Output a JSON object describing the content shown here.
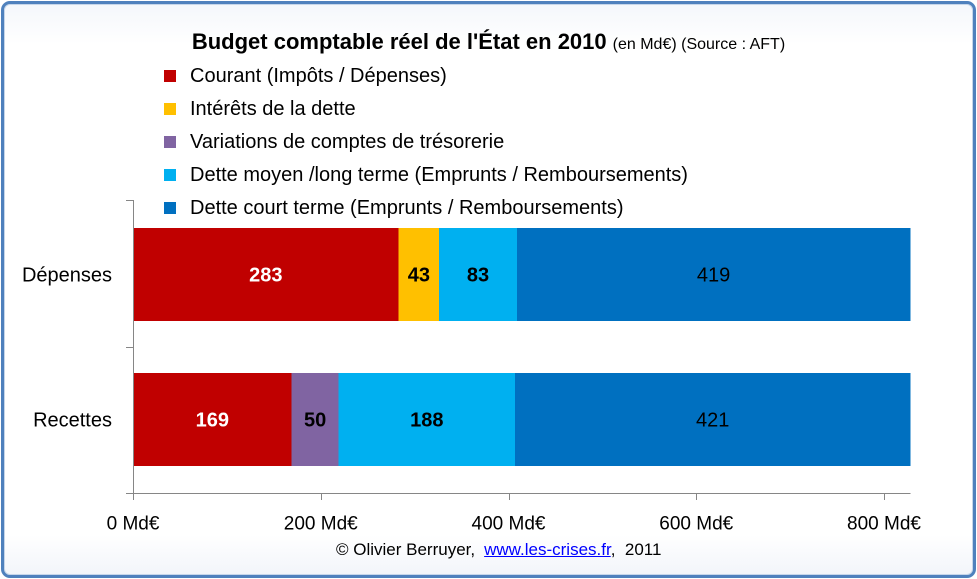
{
  "chart_data": {
    "type": "bar",
    "orientation": "horizontal",
    "stacked": true,
    "title": "Budget comptable réel de l'État en 2010",
    "subtitle": "(en Md€) (Source : AFT)",
    "categories": [
      "Dépenses",
      "Recettes"
    ],
    "series": [
      {
        "name": "Courant (Impôts / Dépenses)",
        "color": "#C00000",
        "label_color": "#FFFFFF",
        "values": [
          283,
          169
        ]
      },
      {
        "name": "Intérêts de la dette",
        "color": "#FFC000",
        "label_color": "#000000",
        "values": [
          43,
          null
        ]
      },
      {
        "name": "Variations de comptes de trésorerie",
        "color": "#8064A2",
        "label_color": "#000000",
        "values": [
          null,
          50
        ]
      },
      {
        "name": "Dette moyen /long terme (Emprunts / Remboursements)",
        "color": "#00B0F0",
        "label_color": "#000000",
        "values": [
          83,
          188
        ]
      },
      {
        "name": "Dette court terme (Emprunts / Remboursements)",
        "color": "#0070C0",
        "label_color": "#000000",
        "values": [
          419,
          421
        ]
      }
    ],
    "xlim": [
      0,
      828
    ],
    "x_tick_values": [
      0,
      200,
      400,
      600,
      800
    ],
    "x_tick_labels": [
      "0 Md€",
      "200 Md€",
      "400 Md€",
      "600 Md€",
      "800 Md€"
    ],
    "grid": false,
    "legend_position": "top"
  },
  "footer": {
    "credit": "© Olivier Berruyer,",
    "link_text": "www.les-crises.fr",
    "suffix": ",  2011"
  },
  "theme": {
    "frame_color": "#4F81BD",
    "axis_color": "#868686",
    "link_color": "#0000FF"
  }
}
